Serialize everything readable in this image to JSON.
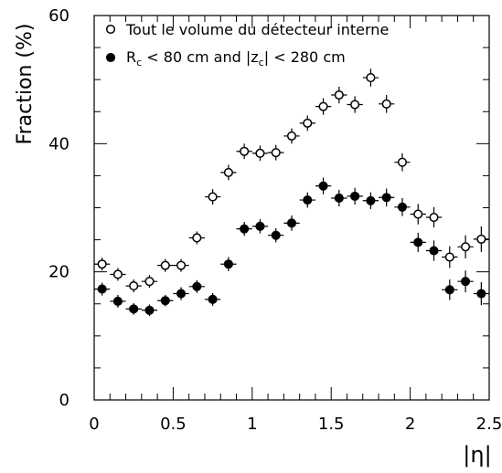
{
  "chart_data": {
    "type": "scatter",
    "title": "",
    "xlabel": "|η|",
    "ylabel": "Fraction (%)",
    "xlim": [
      0,
      2.5
    ],
    "ylim": [
      0,
      60
    ],
    "xticks": [
      {
        "value": 0,
        "label": "0"
      },
      {
        "value": 0.5,
        "label": "0.5"
      },
      {
        "value": 1,
        "label": "1"
      },
      {
        "value": 1.5,
        "label": "1.5"
      },
      {
        "value": 2,
        "label": "2"
      },
      {
        "value": 2.5,
        "label": "2.5"
      }
    ],
    "yticks": [
      {
        "value": 0,
        "label": "0"
      },
      {
        "value": 20,
        "label": "20"
      },
      {
        "value": 40,
        "label": "40"
      },
      {
        "value": 60,
        "label": "60"
      }
    ],
    "grid": false,
    "legend_position": "top-left",
    "series": [
      {
        "name": "Tout le volume du détecteur interne",
        "marker": "open-circle",
        "x": [
          0.05,
          0.15,
          0.25,
          0.35,
          0.45,
          0.55,
          0.65,
          0.75,
          0.85,
          0.95,
          1.05,
          1.15,
          1.25,
          1.35,
          1.45,
          1.55,
          1.65,
          1.75,
          1.85,
          1.95,
          2.05,
          2.15,
          2.25,
          2.35,
          2.45
        ],
        "y": [
          21.2,
          19.6,
          17.8,
          18.5,
          21.0,
          21.0,
          25.3,
          31.7,
          35.5,
          38.8,
          38.5,
          38.6,
          41.2,
          43.2,
          45.8,
          47.6,
          46.1,
          50.3,
          46.2,
          37.1,
          29.0,
          28.5,
          22.3,
          23.9,
          25.1
        ],
        "err": [
          1.0,
          1.0,
          1.0,
          1.0,
          1.0,
          1.0,
          1.0,
          1.2,
          1.2,
          1.2,
          1.2,
          1.2,
          1.2,
          1.2,
          1.3,
          1.3,
          1.3,
          1.4,
          1.4,
          1.4,
          1.6,
          1.6,
          1.7,
          1.8,
          2.0
        ]
      },
      {
        "name_main": "R",
        "name_sub_1": "c",
        "name_mid": " < 80 cm and |z",
        "name_sub_2": "c",
        "name_end": "| < 280 cm",
        "marker": "filled-circle",
        "x": [
          0.05,
          0.15,
          0.25,
          0.35,
          0.45,
          0.55,
          0.65,
          0.75,
          0.85,
          0.95,
          1.05,
          1.15,
          1.25,
          1.35,
          1.45,
          1.55,
          1.65,
          1.75,
          1.85,
          1.95,
          2.05,
          2.15,
          2.25,
          2.35,
          2.45
        ],
        "y": [
          17.3,
          15.4,
          14.2,
          14.0,
          15.5,
          16.6,
          17.7,
          15.7,
          21.2,
          26.7,
          27.1,
          25.7,
          27.6,
          31.2,
          33.4,
          31.5,
          31.8,
          31.1,
          31.6,
          30.1,
          24.6,
          23.3,
          17.2,
          18.5,
          16.6
        ],
        "err": [
          1.0,
          1.0,
          0.9,
          0.9,
          0.9,
          1.0,
          1.0,
          1.0,
          1.1,
          1.1,
          1.1,
          1.1,
          1.2,
          1.2,
          1.3,
          1.3,
          1.3,
          1.3,
          1.4,
          1.4,
          1.5,
          1.6,
          1.6,
          1.7,
          1.8
        ]
      }
    ]
  }
}
